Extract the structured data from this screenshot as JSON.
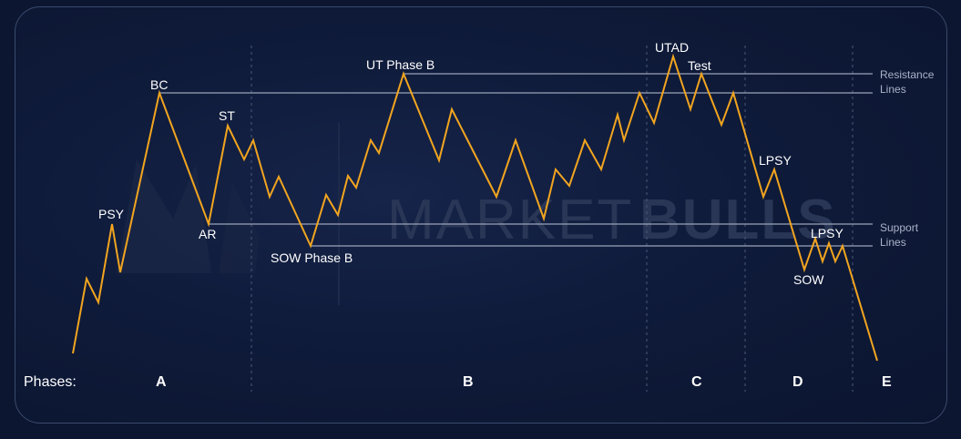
{
  "watermark": {
    "text_light": "MARKET",
    "text_bold": "BULLS"
  },
  "labels": {
    "psy": "PSY",
    "bc": "BC",
    "ar": "AR",
    "st": "ST",
    "sow_phase_b": "SOW Phase B",
    "ut_phase_b": "UT Phase B",
    "utad": "UTAD",
    "test": "Test",
    "lpsy_1": "LPSY",
    "lpsy_2": "LPSY",
    "sow": "SOW"
  },
  "legend": {
    "resistance_line1": "Resistance",
    "resistance_line2": "Lines",
    "support_line1": "Support",
    "support_line2": "Lines"
  },
  "phases": {
    "title": "Phases:",
    "a": "A",
    "b": "B",
    "c": "C",
    "d": "D",
    "e": "E"
  },
  "colors": {
    "price_line": "#f2a51f",
    "level_line": "#9aa3b8",
    "divider": "#4a5878",
    "background": "#0f1b3a"
  }
}
